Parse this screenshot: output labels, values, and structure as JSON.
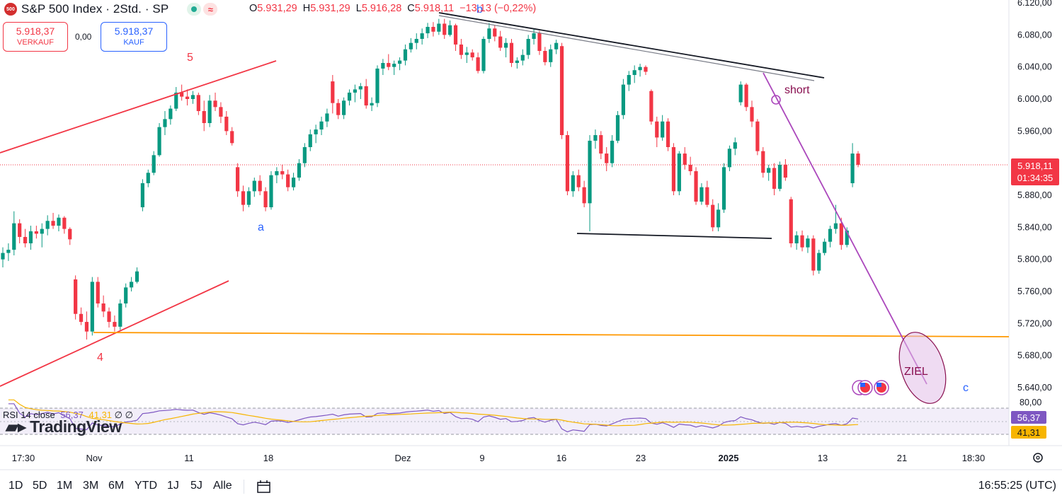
{
  "header": {
    "symbol_badge": "500",
    "title": "S&P 500 Index · 2Std. · SP",
    "wave_icon": "≈",
    "ohlc": {
      "o_label": "O",
      "o": "5.931,29",
      "h_label": "H",
      "h": "5.931,29",
      "l_label": "L",
      "l": "5.916,28",
      "c_label": "C",
      "c": "5.918,11",
      "change": "−13,13 (−0,22%)"
    }
  },
  "trade": {
    "sell_price": "5.918,37",
    "sell_label": "VERKAUF",
    "spread": "0,00",
    "buy_price": "5.918,37",
    "buy_label": "KAUF"
  },
  "price_label": {
    "value": "5.918,11",
    "countdown": "01:34:35"
  },
  "rsi": {
    "legend": "RSI 14 close",
    "value": "56,37",
    "ma": "41,31",
    "ø": "∅ ∅",
    "scale_top": "80,00"
  },
  "logo_text": "TradingView",
  "annotations": {
    "wave_5": "5",
    "wave_4": "4",
    "wave_a": "a",
    "wave_b": "b",
    "wave_c": "c",
    "short": "short",
    "target": "ZIEL"
  },
  "bottom": {
    "timeframes": [
      "1D",
      "5D",
      "1M",
      "3M",
      "6M",
      "YTD",
      "1J",
      "5J",
      "Alle"
    ],
    "clock": "16:55:25 (UTC)"
  },
  "colors": {
    "up": "#089981",
    "down": "#f23645",
    "rsi": "#7e57c2",
    "rsi_ma": "#f7b500",
    "support": "#ff9800",
    "channel": "#f23645",
    "projection": "#ab47bc"
  },
  "chart_data": {
    "type": "candlestick",
    "title": "S&P 500 Index · 2Std. · SP",
    "y_ticks": [
      "6.120,00",
      "6.080,00",
      "6.040,00",
      "6.000,00",
      "5.960,00",
      "5.920,00",
      "5.880,00",
      "5.840,00",
      "5.800,00",
      "5.760,00",
      "5.720,00",
      "5.680,00",
      "5.640,00"
    ],
    "y_range": [
      5630,
      6125
    ],
    "x_ticks": [
      "17:30",
      "Nov",
      "11",
      "18",
      "Dez",
      "9",
      "16",
      "23",
      "2025",
      "13",
      "21",
      "18:30"
    ],
    "last_close": 5918.11,
    "candles": [
      [
        5800,
        5815,
        5790,
        5808
      ],
      [
        5808,
        5820,
        5798,
        5812
      ],
      [
        5812,
        5860,
        5805,
        5845
      ],
      [
        5845,
        5850,
        5820,
        5828
      ],
      [
        5828,
        5838,
        5815,
        5820
      ],
      [
        5820,
        5842,
        5812,
        5835
      ],
      [
        5835,
        5842,
        5826,
        5832
      ],
      [
        5832,
        5845,
        5815,
        5838
      ],
      [
        5838,
        5855,
        5830,
        5848
      ],
      [
        5848,
        5858,
        5838,
        5842
      ],
      [
        5842,
        5856,
        5835,
        5852
      ],
      [
        5852,
        5854,
        5832,
        5838
      ],
      [
        5838,
        5840,
        5818,
        5825
      ],
      [
        5775,
        5780,
        5725,
        5732
      ],
      [
        5732,
        5740,
        5718,
        5722
      ],
      [
        5722,
        5735,
        5700,
        5710
      ],
      [
        5710,
        5778,
        5705,
        5772
      ],
      [
        5772,
        5778,
        5740,
        5745
      ],
      [
        5745,
        5755,
        5728,
        5735
      ],
      [
        5735,
        5740,
        5715,
        5722
      ],
      [
        5722,
        5730,
        5710,
        5716
      ],
      [
        5716,
        5750,
        5712,
        5745
      ],
      [
        5745,
        5770,
        5740,
        5765
      ],
      [
        5765,
        5778,
        5760,
        5772
      ],
      [
        5772,
        5790,
        5770,
        5785
      ],
      [
        5865,
        5900,
        5860,
        5895
      ],
      [
        5895,
        5912,
        5890,
        5908
      ],
      [
        5908,
        5935,
        5905,
        5930
      ],
      [
        5930,
        5970,
        5928,
        5965
      ],
      [
        5965,
        5985,
        5955,
        5975
      ],
      [
        5975,
        5992,
        5968,
        5988
      ],
      [
        5988,
        6015,
        5985,
        6008
      ],
      [
        6008,
        6018,
        5998,
        6003
      ],
      [
        6003,
        6012,
        5992,
        6000
      ],
      [
        6000,
        6010,
        5994,
        6005
      ],
      [
        6005,
        6008,
        5980,
        5985
      ],
      [
        5985,
        5998,
        5960,
        5970
      ],
      [
        5970,
        6005,
        5965,
        5998
      ],
      [
        5998,
        6008,
        5985,
        5990
      ],
      [
        5990,
        5996,
        5970,
        5978
      ],
      [
        5978,
        5985,
        5955,
        5960
      ],
      [
        5960,
        5965,
        5942,
        5945
      ],
      [
        5915,
        5920,
        5878,
        5885
      ],
      [
        5885,
        5892,
        5860,
        5868
      ],
      [
        5868,
        5890,
        5865,
        5885
      ],
      [
        5885,
        5902,
        5878,
        5898
      ],
      [
        5898,
        5905,
        5880,
        5885
      ],
      [
        5885,
        5890,
        5860,
        5865
      ],
      [
        5865,
        5910,
        5862,
        5905
      ],
      [
        5905,
        5915,
        5895,
        5910
      ],
      [
        5910,
        5918,
        5900,
        5906
      ],
      [
        5906,
        5912,
        5885,
        5890
      ],
      [
        5890,
        5908,
        5886,
        5902
      ],
      [
        5902,
        5925,
        5898,
        5920
      ],
      [
        5920,
        5945,
        5915,
        5940
      ],
      [
        5940,
        5962,
        5935,
        5956
      ],
      [
        5956,
        5968,
        5945,
        5962
      ],
      [
        5962,
        5978,
        5955,
        5972
      ],
      [
        5972,
        5988,
        5965,
        5982
      ],
      [
        6022,
        6030,
        5982,
        5995
      ],
      [
        5995,
        6000,
        5975,
        5980
      ],
      [
        5980,
        6002,
        5975,
        5998
      ],
      [
        5998,
        6012,
        5992,
        6008
      ],
      [
        6008,
        6018,
        5996,
        6012
      ],
      [
        6012,
        6020,
        6000,
        6016
      ],
      [
        6016,
        6025,
        5988,
        5992
      ],
      [
        5992,
        6002,
        5985,
        5995
      ],
      [
        5995,
        6042,
        5990,
        6038
      ],
      [
        6038,
        6050,
        6030,
        6045
      ],
      [
        6045,
        6056,
        6036,
        6040
      ],
      [
        6040,
        6048,
        6030,
        6044
      ],
      [
        6044,
        6052,
        6036,
        6048
      ],
      [
        6048,
        6068,
        6042,
        6062
      ],
      [
        6062,
        6076,
        6058,
        6070
      ],
      [
        6070,
        6082,
        6062,
        6075
      ],
      [
        6075,
        6088,
        6068,
        6082
      ],
      [
        6082,
        6095,
        6076,
        6090
      ],
      [
        6090,
        6096,
        6078,
        6084
      ],
      [
        6084,
        6100,
        6080,
        6094
      ],
      [
        6094,
        6100,
        6075,
        6080
      ],
      [
        6080,
        6098,
        6078,
        6092
      ],
      [
        6092,
        6094,
        6060,
        6068
      ],
      [
        6068,
        6075,
        6050,
        6055
      ],
      [
        6055,
        6065,
        6045,
        6058
      ],
      [
        6058,
        6062,
        6048,
        6052
      ],
      [
        6052,
        6058,
        6032,
        6035
      ],
      [
        6035,
        6078,
        6032,
        6075
      ],
      [
        6075,
        6095,
        6070,
        6088
      ],
      [
        6088,
        6092,
        6072,
        6078
      ],
      [
        6078,
        6085,
        6060,
        6064
      ],
      [
        6064,
        6076,
        6052,
        6070
      ],
      [
        6070,
        6075,
        6040,
        6045
      ],
      [
        6045,
        6052,
        6038,
        6048
      ],
      [
        6048,
        6062,
        6042,
        6055
      ],
      [
        6055,
        6080,
        6050,
        6075
      ],
      [
        6075,
        6088,
        6068,
        6082
      ],
      [
        6082,
        6085,
        6055,
        6060
      ],
      [
        6060,
        6065,
        6042,
        6046
      ],
      [
        6046,
        6068,
        6040,
        6062
      ],
      [
        6062,
        6074,
        6056,
        6070
      ],
      [
        6066,
        6070,
        5950,
        5955
      ],
      [
        5955,
        5960,
        5880,
        5885
      ],
      [
        5885,
        5910,
        5878,
        5905
      ],
      [
        5905,
        5912,
        5885,
        5890
      ],
      [
        5890,
        5898,
        5865,
        5870
      ],
      [
        5870,
        5955,
        5835,
        5948
      ],
      [
        5948,
        5962,
        5938,
        5955
      ],
      [
        5955,
        5960,
        5925,
        5932
      ],
      [
        5932,
        5940,
        5910,
        5920
      ],
      [
        5920,
        5955,
        5915,
        5948
      ],
      [
        5948,
        5985,
        5945,
        5980
      ],
      [
        5980,
        6025,
        5975,
        6018
      ],
      [
        6018,
        6035,
        6010,
        6030
      ],
      [
        6030,
        6042,
        6020,
        6036
      ],
      [
        6036,
        6044,
        6028,
        6040
      ],
      [
        6040,
        6042,
        6030,
        6034
      ],
      [
        6010,
        6012,
        5968,
        5972
      ],
      [
        5972,
        5978,
        5940,
        5952
      ],
      [
        5952,
        5980,
        5948,
        5972
      ],
      [
        5972,
        5976,
        5935,
        5940
      ],
      [
        5940,
        5945,
        5880,
        5885
      ],
      [
        5885,
        5935,
        5880,
        5932
      ],
      [
        5932,
        5940,
        5912,
        5918
      ],
      [
        5918,
        5928,
        5905,
        5910
      ],
      [
        5910,
        5915,
        5868,
        5872
      ],
      [
        5872,
        5895,
        5868,
        5890
      ],
      [
        5890,
        5898,
        5865,
        5868
      ],
      [
        5868,
        5875,
        5835,
        5840
      ],
      [
        5840,
        5870,
        5835,
        5862
      ],
      [
        5862,
        5920,
        5858,
        5915
      ],
      [
        5915,
        5942,
        5910,
        5938
      ],
      [
        5938,
        5952,
        5930,
        5946
      ],
      [
        5996,
        6022,
        5992,
        6018
      ],
      [
        6018,
        6020,
        5985,
        5990
      ],
      [
        5990,
        5998,
        5965,
        5972
      ],
      [
        5972,
        5975,
        5930,
        5935
      ],
      [
        5935,
        5940,
        5902,
        5908
      ],
      [
        5908,
        5918,
        5898,
        5914
      ],
      [
        5914,
        5920,
        5880,
        5888
      ],
      [
        5888,
        5922,
        5885,
        5918
      ],
      [
        5918,
        5925,
        5898,
        5902
      ],
      [
        5875,
        5878,
        5815,
        5820
      ],
      [
        5820,
        5835,
        5812,
        5830
      ],
      [
        5830,
        5836,
        5810,
        5815
      ],
      [
        5815,
        5830,
        5808,
        5826
      ],
      [
        5826,
        5830,
        5780,
        5786
      ],
      [
        5786,
        5812,
        5782,
        5808
      ],
      [
        5808,
        5826,
        5805,
        5822
      ],
      [
        5822,
        5842,
        5815,
        5838
      ],
      [
        5838,
        5868,
        5832,
        5845
      ],
      [
        5845,
        5852,
        5812,
        5818
      ],
      [
        5818,
        5840,
        5815,
        5836
      ],
      [
        5895,
        5945,
        5890,
        5932
      ],
      [
        5932,
        5935,
        5915,
        5918
      ]
    ],
    "lines": {
      "support_orange": [
        5705,
        5703
      ],
      "neckline_black": [
        5834,
        5828
      ]
    },
    "rsi_series": [],
    "annotations": [
      "5",
      "4",
      "a",
      "b",
      "c",
      "short",
      "ZIEL"
    ]
  }
}
